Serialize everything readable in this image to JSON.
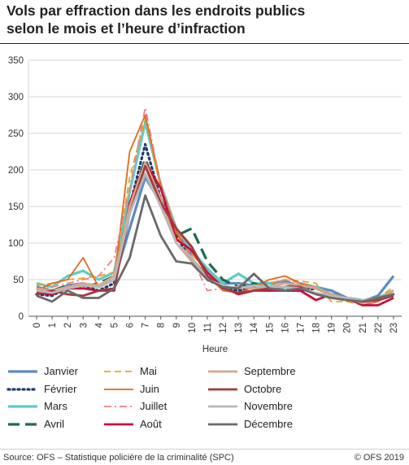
{
  "title_line1": "Vols par effraction dans les endroits publics",
  "title_line2": "selon le mois et l’heure d’infraction",
  "source": "Source: OFS – Statistique policière de la criminalité (SPC)",
  "copyright": "© OFS 2019",
  "chart_data": {
    "type": "line",
    "xlabel": "Heure",
    "ylabel": "",
    "x": [
      0,
      1,
      2,
      3,
      4,
      5,
      6,
      7,
      8,
      9,
      10,
      11,
      12,
      13,
      14,
      15,
      16,
      17,
      18,
      19,
      20,
      21,
      22,
      23
    ],
    "ylim": [
      0,
      350
    ],
    "yticks": [
      0,
      50,
      100,
      150,
      200,
      250,
      300,
      350
    ],
    "grid": true,
    "legend_position": "bottom",
    "series": [
      {
        "name": "Janvier",
        "color": "#5b8bc4",
        "dash": "solid",
        "width": 3.2,
        "values": [
          40,
          35,
          42,
          45,
          40,
          50,
          120,
          190,
          155,
          115,
          85,
          65,
          45,
          45,
          42,
          45,
          48,
          40,
          40,
          35,
          25,
          20,
          28,
          55
        ]
      },
      {
        "name": "Février",
        "color": "#1f3a6e",
        "dash": "dot",
        "width": 3.2,
        "values": [
          30,
          28,
          40,
          42,
          35,
          45,
          150,
          235,
          160,
          110,
          75,
          50,
          40,
          35,
          40,
          38,
          35,
          35,
          38,
          30,
          25,
          20,
          22,
          30
        ]
      },
      {
        "name": "Mars",
        "color": "#5ecbc4",
        "dash": "solid",
        "width": 3.2,
        "values": [
          45,
          40,
          55,
          62,
          50,
          60,
          170,
          265,
          180,
          120,
          90,
          65,
          45,
          58,
          45,
          45,
          35,
          45,
          40,
          30,
          25,
          20,
          25,
          35
        ]
      },
      {
        "name": "Avril",
        "color": "#1e6b4e",
        "dash": "longdash",
        "width": 3.2,
        "values": [
          38,
          35,
          42,
          40,
          45,
          55,
          150,
          215,
          160,
          110,
          120,
          75,
          50,
          40,
          45,
          35,
          40,
          42,
          38,
          30,
          25,
          22,
          25,
          30
        ]
      },
      {
        "name": "Mai",
        "color": "#f0a21c",
        "dash": "dash",
        "width": 1.8,
        "values": [
          42,
          45,
          50,
          52,
          55,
          60,
          190,
          270,
          175,
          110,
          85,
          60,
          40,
          40,
          38,
          45,
          50,
          48,
          45,
          20,
          20,
          15,
          25,
          40
        ]
      },
      {
        "name": "Juin",
        "color": "#e06a1b",
        "dash": "solid",
        "width": 1.8,
        "values": [
          35,
          45,
          50,
          80,
          40,
          50,
          225,
          275,
          180,
          115,
          80,
          55,
          35,
          32,
          40,
          50,
          55,
          45,
          38,
          30,
          25,
          15,
          20,
          35
        ]
      },
      {
        "name": "Juillet",
        "color": "#ee7f88",
        "dash": "dashdot",
        "width": 1.8,
        "values": [
          35,
          40,
          45,
          50,
          55,
          80,
          175,
          285,
          180,
          120,
          80,
          35,
          38,
          30,
          35,
          40,
          50,
          45,
          40,
          30,
          20,
          18,
          20,
          30
        ]
      },
      {
        "name": "Août",
        "color": "#c8103c",
        "dash": "solid",
        "width": 2.8,
        "values": [
          32,
          30,
          38,
          38,
          35,
          35,
          155,
          210,
          175,
          105,
          90,
          60,
          40,
          30,
          35,
          35,
          35,
          35,
          22,
          30,
          25,
          15,
          15,
          25
        ]
      },
      {
        "name": "Septembre",
        "color": "#d9a589",
        "dash": "solid",
        "width": 2.8,
        "values": [
          38,
          35,
          40,
          45,
          42,
          55,
          150,
          210,
          160,
          100,
          75,
          55,
          38,
          40,
          38,
          40,
          45,
          42,
          38,
          30,
          25,
          18,
          22,
          35
        ]
      },
      {
        "name": "Octobre",
        "color": "#a33a3e",
        "dash": "solid",
        "width": 2.8,
        "values": [
          30,
          35,
          30,
          28,
          35,
          38,
          140,
          205,
          155,
          120,
          95,
          55,
          38,
          32,
          35,
          38,
          40,
          40,
          30,
          28,
          25,
          20,
          22,
          28
        ]
      },
      {
        "name": "Novembre",
        "color": "#b8b8b8",
        "dash": "solid",
        "width": 2.8,
        "values": [
          35,
          32,
          38,
          42,
          40,
          50,
          140,
          195,
          150,
          100,
          80,
          50,
          42,
          38,
          42,
          40,
          40,
          38,
          32,
          28,
          25,
          22,
          25,
          30
        ]
      },
      {
        "name": "Décembre",
        "color": "#6a6a6a",
        "dash": "solid",
        "width": 2.8,
        "values": [
          28,
          20,
          35,
          25,
          25,
          38,
          80,
          165,
          110,
          75,
          72,
          50,
          40,
          38,
          58,
          38,
          35,
          38,
          30,
          25,
          22,
          20,
          25,
          30
        ]
      }
    ]
  }
}
